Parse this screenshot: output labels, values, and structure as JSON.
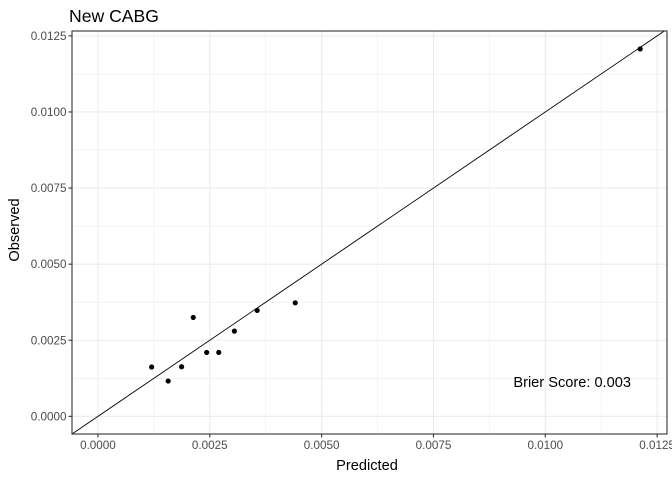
{
  "chart_data": {
    "type": "scatter",
    "title": "New CABG",
    "xlabel": "Predicted",
    "ylabel": "Observed",
    "xlim": [
      -0.00058,
      0.01272
    ],
    "ylim": [
      -0.00058,
      0.01266
    ],
    "x_ticks": [
      0.0,
      0.0025,
      0.005,
      0.0075,
      0.01,
      0.0125
    ],
    "x_tick_labels": [
      "0.0000",
      "0.0025",
      "0.0050",
      "0.0075",
      "0.0100",
      "0.0125"
    ],
    "y_ticks": [
      0.0,
      0.0025,
      0.005,
      0.0075,
      0.01,
      0.0125
    ],
    "y_tick_labels": [
      "0.0000",
      "0.0025",
      "0.0050",
      "0.0075",
      "0.0100",
      "0.0125"
    ],
    "reference_line": "identity",
    "grid": true,
    "points": [
      {
        "x": 0.0012,
        "y": 0.00162
      },
      {
        "x": 0.00157,
        "y": 0.00116
      },
      {
        "x": 0.00187,
        "y": 0.00163
      },
      {
        "x": 0.00213,
        "y": 0.00325
      },
      {
        "x": 0.00243,
        "y": 0.0021
      },
      {
        "x": 0.0027,
        "y": 0.0021
      },
      {
        "x": 0.00305,
        "y": 0.0028
      },
      {
        "x": 0.00356,
        "y": 0.00348
      },
      {
        "x": 0.00441,
        "y": 0.00373
      },
      {
        "x": 0.01212,
        "y": 0.01207
      }
    ],
    "annotations": [
      {
        "text": "Brier Score: 0.003",
        "x": 0.0106,
        "y": 0.00096
      }
    ],
    "colors": {
      "points": "#000000",
      "line": "#000000",
      "grid": "#ebebeb",
      "panel_border": "#333333"
    }
  }
}
